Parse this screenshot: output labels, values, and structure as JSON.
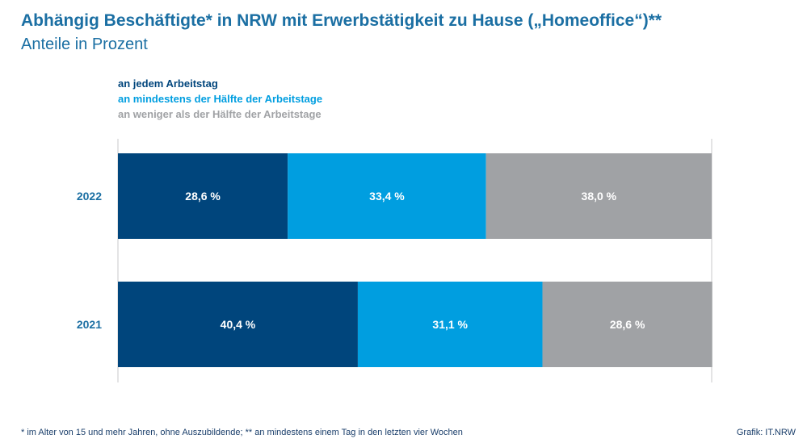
{
  "title": "Abhängig Beschäftigte* in NRW mit Erwerbstätigkeit zu Hause („Homeoffice“)**",
  "subtitle": "Anteile in Prozent",
  "footnote": "* im Alter von 15 und mehr Jahren, ohne Auszubildende; ** an mindestens einem Tag in den letzten vier Wochen",
  "credit": "Grafik: IT.NRW",
  "colors": {
    "series": [
      "#00457c",
      "#009ee0",
      "#a0a2a5"
    ],
    "title": "#1b6fa3",
    "category_label": "#1b6fa3",
    "bar_label": "#ffffff"
  },
  "chart_data": {
    "type": "bar",
    "orientation": "horizontal",
    "stacked": true,
    "categories": [
      "2022",
      "2021"
    ],
    "series": [
      {
        "name": "an jedem Arbeitstag",
        "values": [
          28.6,
          40.4
        ],
        "labels": [
          "28,6 %",
          "40,4 %"
        ]
      },
      {
        "name": "an mindestens der Hälfte der Arbeitstage",
        "values": [
          33.4,
          31.1
        ],
        "labels": [
          "33,4 %",
          "31,1 %"
        ]
      },
      {
        "name": "an weniger als der Hälfte der Arbeitstage",
        "values": [
          38.0,
          28.6
        ],
        "labels": [
          "38,0 %",
          "28,6 %"
        ]
      }
    ],
    "xlim": [
      0,
      100
    ],
    "grid": false,
    "legend_position": "top-left"
  }
}
